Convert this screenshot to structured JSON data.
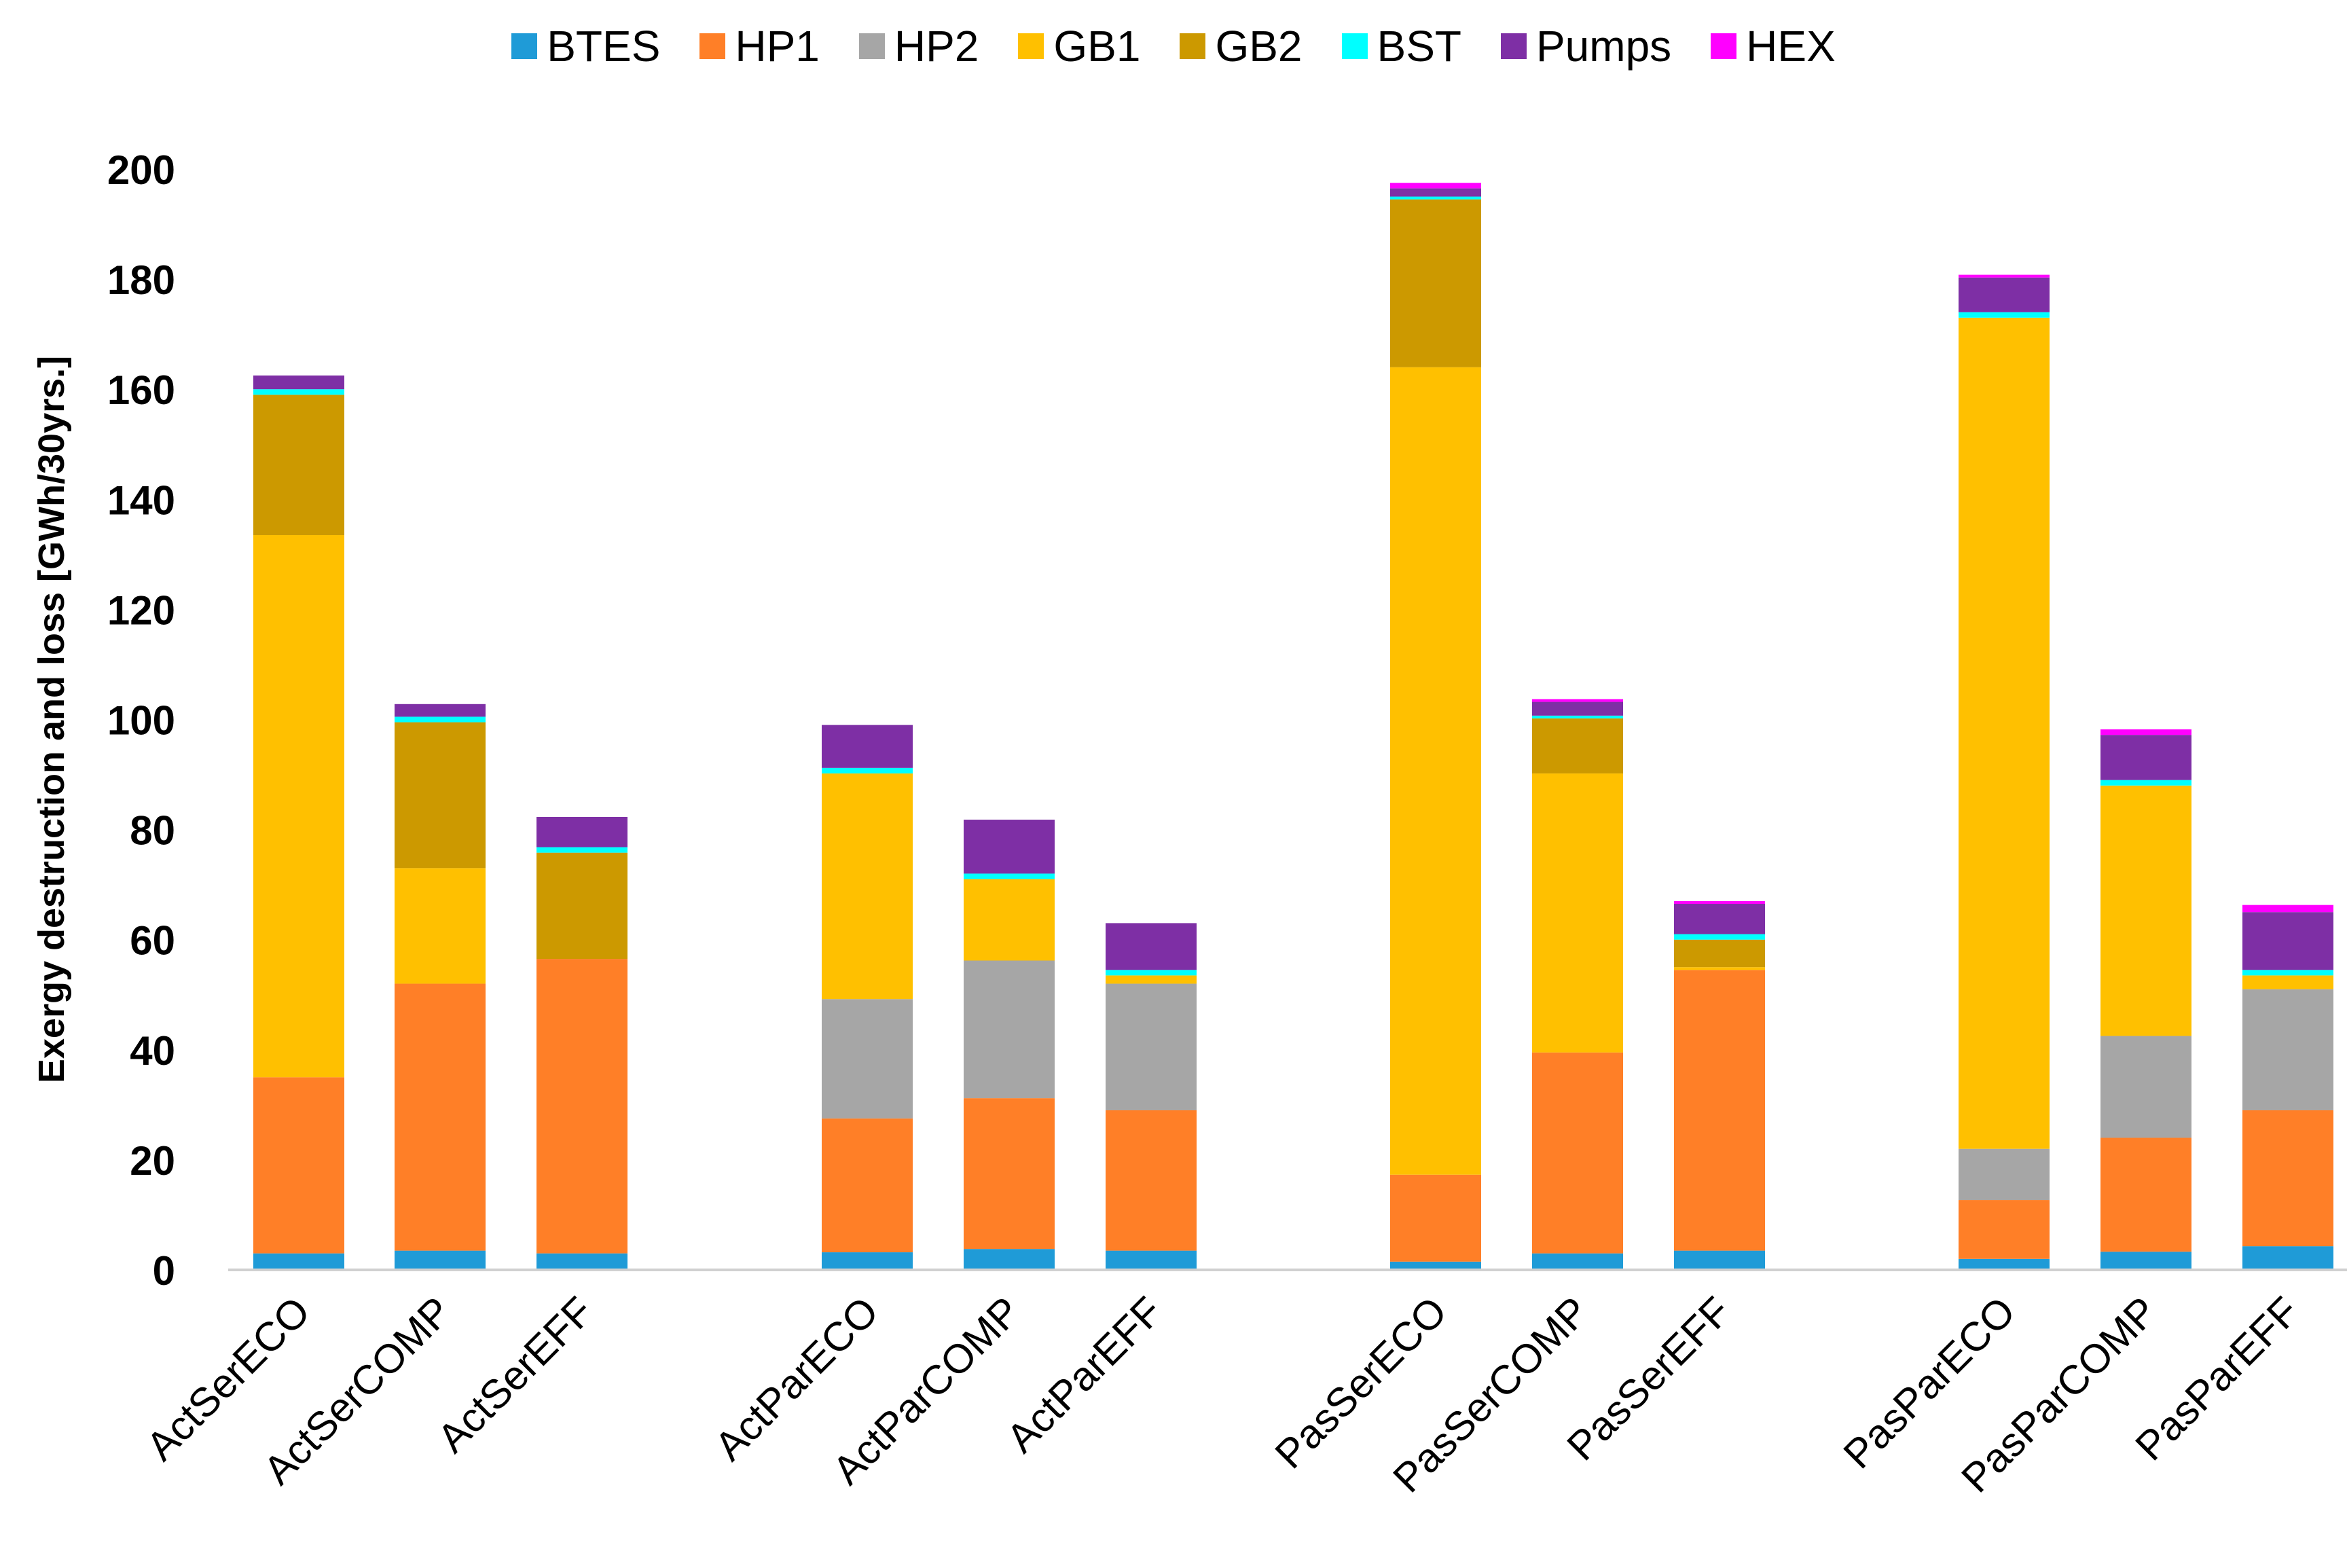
{
  "chart_data": {
    "type": "bar",
    "stacked": true,
    "title": "",
    "xlabel": "",
    "ylabel": "Exergy destruction and loss [GWh/30yrs.]",
    "ylim": [
      0,
      200
    ],
    "yticks": [
      0,
      20,
      40,
      60,
      80,
      100,
      120,
      140,
      160,
      180,
      200
    ],
    "grid": false,
    "legend_position": "top",
    "groups": [
      [
        "ActSerECO",
        "ActSerCOMP",
        "ActSerEFF"
      ],
      [
        "ActParECO",
        "ActParCOMP",
        "ActParEFF"
      ],
      [
        "PasSerECO",
        "PasSerCOMP",
        "PasSerEFF"
      ],
      [
        "PasParECO",
        "PasParCOMP",
        "PasParEFF"
      ]
    ],
    "categories": [
      "ActSerECO",
      "ActSerCOMP",
      "ActSerEFF",
      "ActParECO",
      "ActParCOMP",
      "ActParEFF",
      "PasSerECO",
      "PasSerCOMP",
      "PasSerEFF",
      "PasParECO",
      "PasParCOMP",
      "PasParEFF"
    ],
    "series": [
      {
        "name": "BTES",
        "color": "#1F9BD7",
        "values": [
          3.0,
          3.5,
          3.0,
          3.2,
          3.8,
          3.5,
          1.5,
          3.0,
          3.5,
          2.0,
          3.3,
          4.3
        ]
      },
      {
        "name": "HP1",
        "color": "#FF7F27",
        "values": [
          32.0,
          48.5,
          53.5,
          24.3,
          27.4,
          25.5,
          15.8,
          36.5,
          51.0,
          10.7,
          20.7,
          24.7
        ]
      },
      {
        "name": "HP2",
        "color": "#A6A6A6",
        "values": [
          0,
          0,
          0,
          21.7,
          25.0,
          23.0,
          0,
          0,
          0,
          9.3,
          18.5,
          22.0
        ]
      },
      {
        "name": "GB1",
        "color": "#FFC000",
        "values": [
          98.5,
          21.0,
          0,
          41.0,
          14.8,
          1.5,
          146.7,
          50.7,
          0.5,
          151.0,
          45.5,
          2.5
        ]
      },
      {
        "name": "GB2",
        "color": "#CC9900",
        "values": [
          25.5,
          26.5,
          19.3,
          0,
          0,
          0,
          30.5,
          10.0,
          5.0,
          0,
          0,
          0
        ]
      },
      {
        "name": "BST",
        "color": "#00FFFF",
        "values": [
          1.0,
          1.0,
          1.0,
          1.0,
          1.0,
          1.0,
          0.5,
          0.5,
          1.0,
          1.0,
          1.0,
          1.0
        ]
      },
      {
        "name": "Pumps",
        "color": "#7E2FA5",
        "values": [
          2.5,
          2.3,
          5.5,
          7.8,
          9.8,
          8.5,
          1.5,
          2.5,
          5.5,
          6.3,
          8.2,
          10.5
        ]
      },
      {
        "name": "HEX",
        "color": "#FF00FF",
        "values": [
          0,
          0,
          0,
          0,
          0,
          0,
          1.0,
          0.5,
          0.5,
          0.5,
          1.0,
          1.3
        ]
      }
    ]
  }
}
